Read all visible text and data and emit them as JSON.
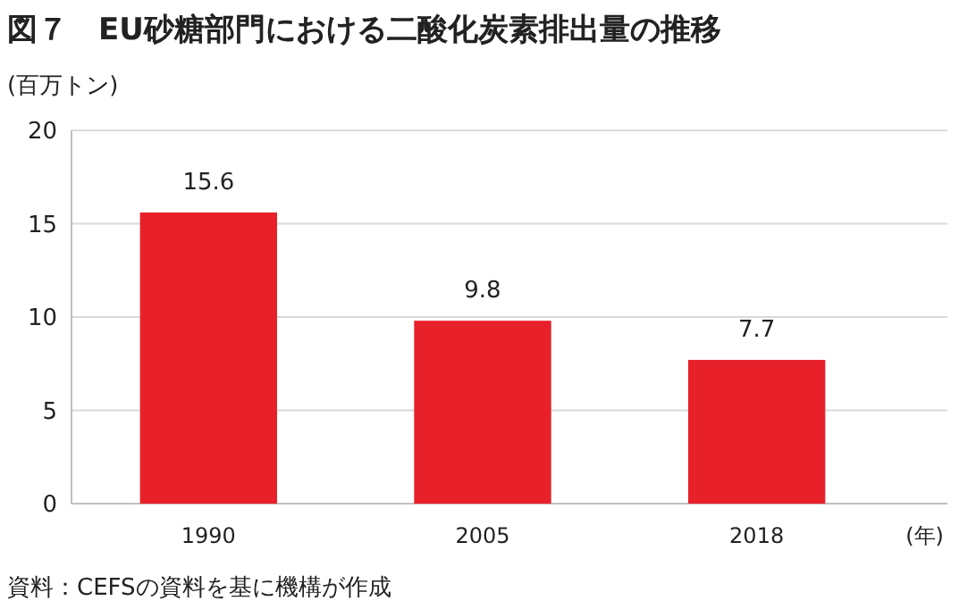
{
  "chart_data": {
    "type": "bar",
    "title": "図７　EU砂糖部門における二酸化炭素排出量の推移",
    "ylabel": "(百万トン)",
    "xlabel": "(年)",
    "categories": [
      "1990",
      "2005",
      "2018"
    ],
    "values": [
      15.6,
      9.8,
      7.7
    ],
    "color": "#e8202a",
    "ylim": [
      0,
      20
    ],
    "yticks": [
      0,
      5,
      10,
      15,
      20
    ],
    "grid": "y",
    "data_labels": true,
    "annotations": [
      "資料：CEFSの資料を基に機構が作成"
    ]
  }
}
